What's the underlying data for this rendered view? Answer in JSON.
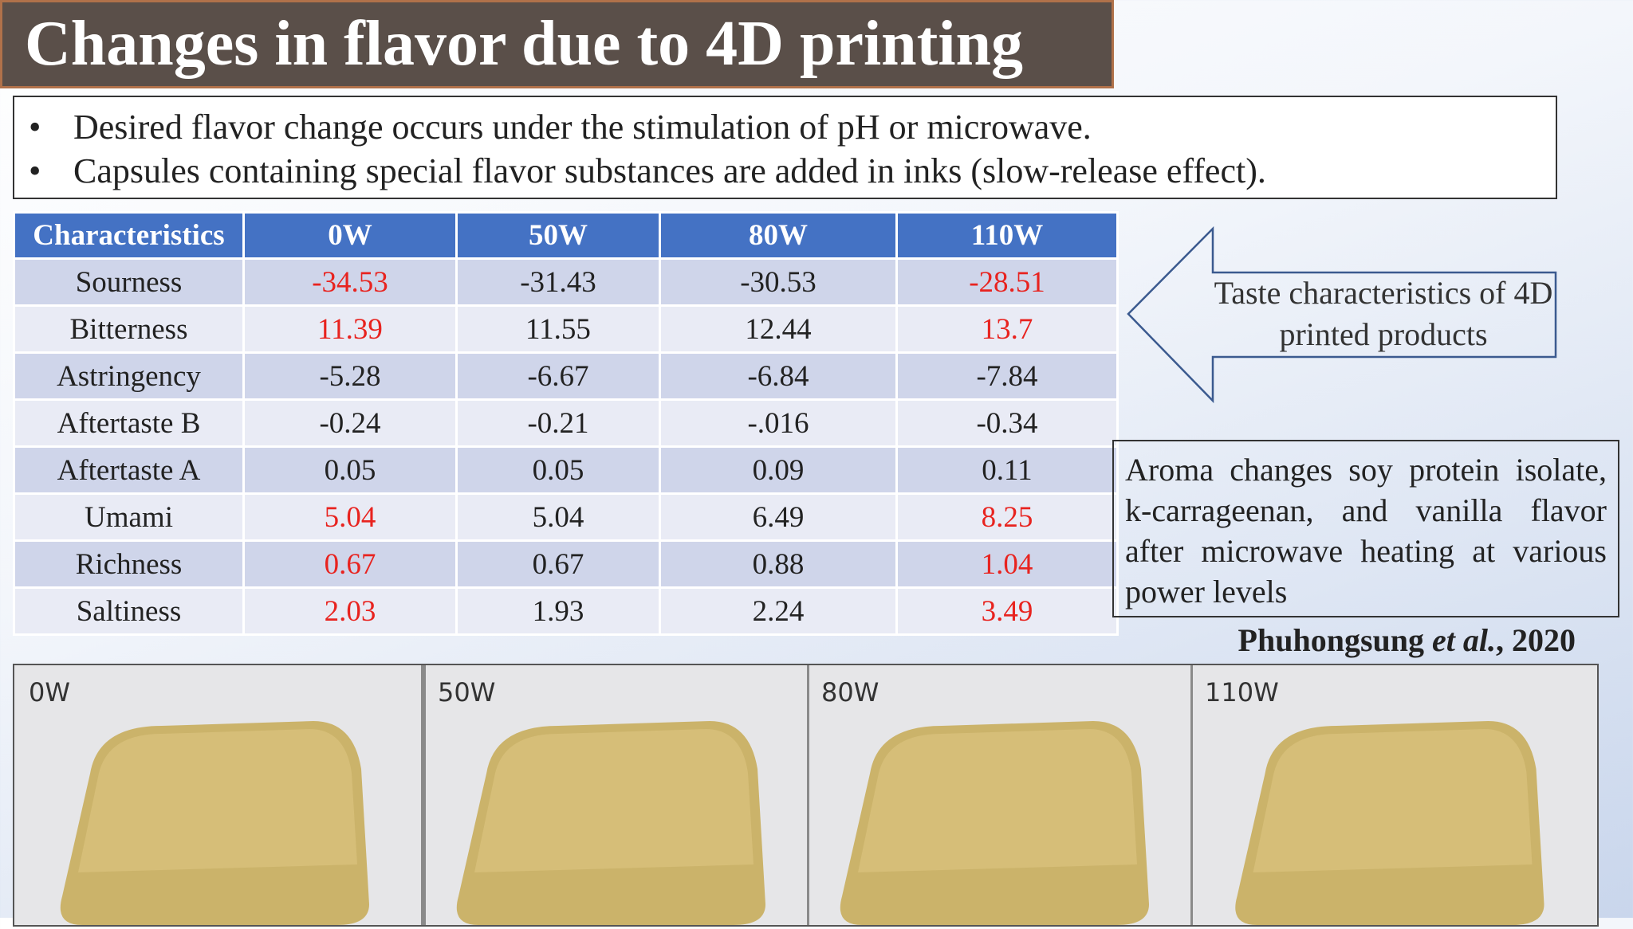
{
  "header": {
    "title": "Changes in flavor due to 4D printing"
  },
  "bullets": [
    "Desired flavor change occurs under the stimulation of pH or microwave.",
    "Capsules containing special flavor substances are added in inks (slow-release effect)."
  ],
  "bullet_symbol": "•",
  "table": {
    "header": [
      "Characteristics",
      "0W",
      "50W",
      "80W",
      "110W"
    ],
    "highlight_color": "#e8231f",
    "rows": [
      {
        "cells": [
          "Sourness",
          "-34.53",
          "-31.43",
          "-30.53",
          "-28.51"
        ],
        "highlighted": true
      },
      {
        "cells": [
          "Bitterness",
          "11.39",
          "11.55",
          "12.44",
          "13.7"
        ],
        "highlighted": true
      },
      {
        "cells": [
          "Astringency",
          "-5.28",
          "-6.67",
          "-6.84",
          "-7.84"
        ],
        "highlighted": false
      },
      {
        "cells": [
          "Aftertaste B",
          "-0.24",
          "-0.21",
          "-.016",
          "-0.34"
        ],
        "highlighted": false
      },
      {
        "cells": [
          "Aftertaste A",
          "0.05",
          "0.05",
          "0.09",
          "0.11"
        ],
        "highlighted": false
      },
      {
        "cells": [
          "Umami",
          "5.04",
          "5.04",
          "6.49",
          "8.25"
        ],
        "highlighted": true
      },
      {
        "cells": [
          "Richness",
          "0.67",
          "0.67",
          "0.88",
          "1.04"
        ],
        "highlighted": true
      },
      {
        "cells": [
          "Saltiness",
          "2.03",
          "1.93",
          "2.24",
          "3.49"
        ],
        "highlighted": true
      }
    ]
  },
  "arrow_callout": {
    "text": "Taste characteristics of 4D printed products"
  },
  "aroma_note": {
    "text": "Aroma changes soy protein isolate, k-carrageenan, and vanilla flavor after microwave heating at various power levels"
  },
  "citation": {
    "author": "Phuhongsung",
    "etal": "et al.",
    "year": ", 2020"
  },
  "photos": {
    "labels": [
      "0W",
      "50W",
      "80W",
      "110W"
    ]
  }
}
